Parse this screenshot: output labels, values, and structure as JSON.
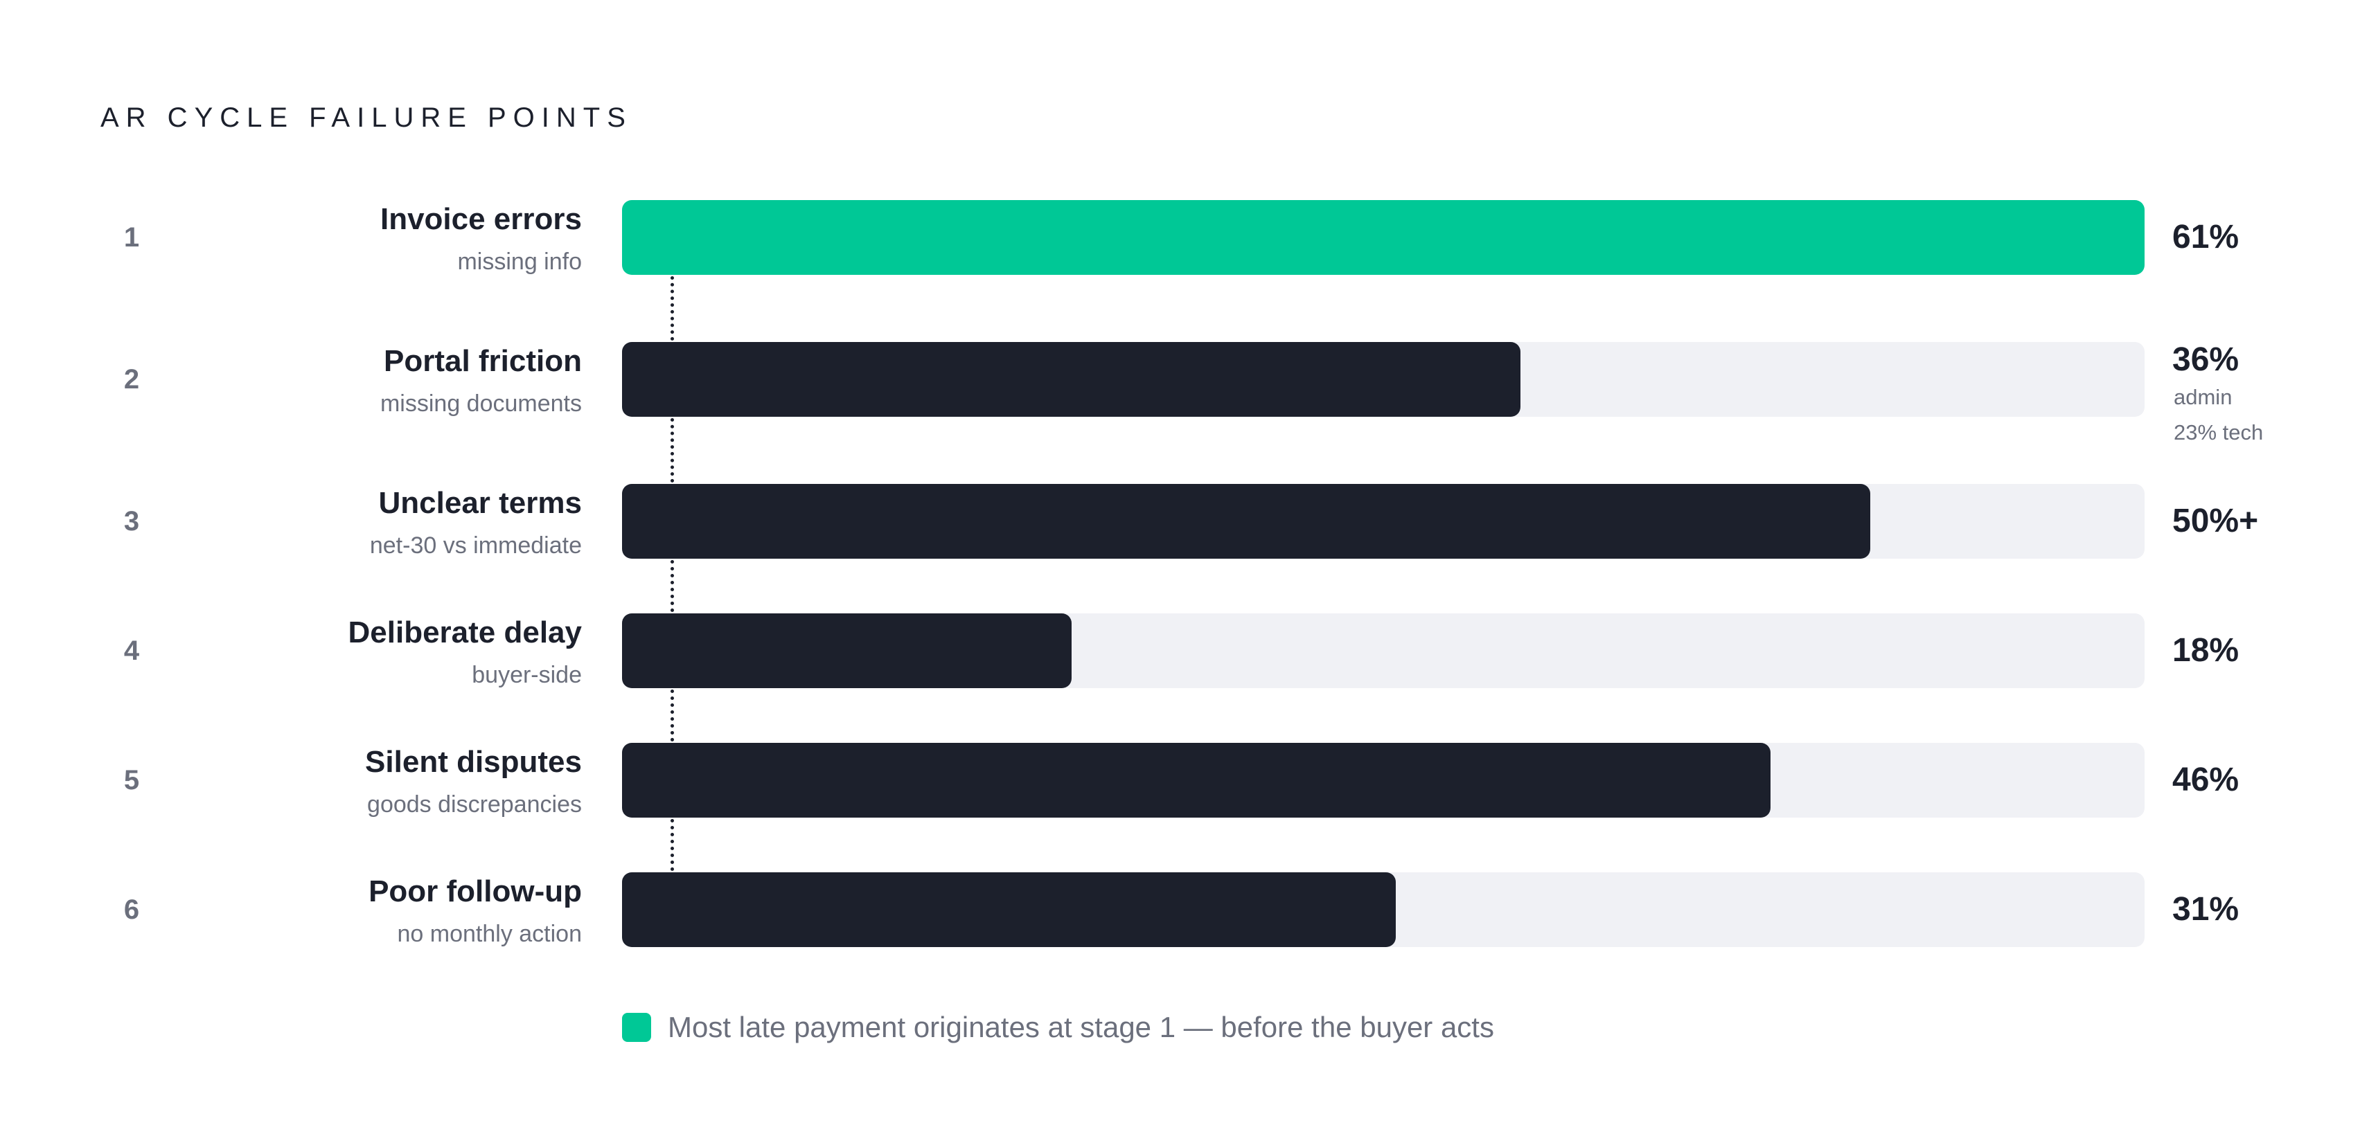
{
  "chart_data": {
    "type": "bar",
    "orientation": "horizontal",
    "title": "AR CYCLE FAILURE POINTS",
    "xlim": [
      0,
      61
    ],
    "grid": false,
    "categories": [
      "Invoice errors",
      "Portal friction",
      "Unclear terms",
      "Deliberate delay",
      "Silent disputes",
      "Poor follow-up"
    ],
    "items": [
      {
        "rank": "1",
        "label": "Invoice errors",
        "sublabel": "missing info",
        "value": 61,
        "value_label": "61%",
        "highlight": true,
        "notes": []
      },
      {
        "rank": "2",
        "label": "Portal friction",
        "sublabel": "missing documents",
        "value": 36,
        "value_label": "36%",
        "highlight": false,
        "notes": [
          "admin",
          "23% tech"
        ]
      },
      {
        "rank": "3",
        "label": "Unclear terms",
        "sublabel": "net-30 vs immediate",
        "value": 50,
        "value_label": "50%+",
        "highlight": false,
        "notes": []
      },
      {
        "rank": "4",
        "label": "Deliberate delay",
        "sublabel": "buyer-side",
        "value": 18,
        "value_label": "18%",
        "highlight": false,
        "notes": []
      },
      {
        "rank": "5",
        "label": "Silent disputes",
        "sublabel": "goods discrepancies",
        "value": 46,
        "value_label": "46%",
        "highlight": false,
        "notes": []
      },
      {
        "rank": "6",
        "label": "Poor follow-up",
        "sublabel": "no monthly action",
        "value": 31,
        "value_label": "31%",
        "highlight": false,
        "notes": []
      }
    ],
    "legend": {
      "position": "bottom",
      "text": "Most late payment originates at stage 1 — before the buyer acts",
      "color": "#00c896"
    },
    "colors": {
      "highlight": "#00c896",
      "bar": "#1c202c",
      "track": "#f0f1f5",
      "muted_text": "#6b6f7c"
    }
  }
}
